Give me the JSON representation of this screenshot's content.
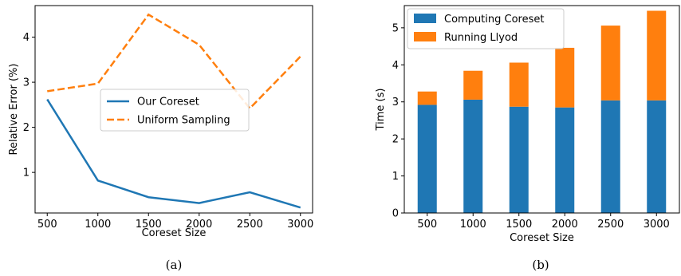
{
  "chart_data": [
    {
      "id": "a",
      "type": "line",
      "caption": "(a)",
      "title": "",
      "xlabel": "Coreset Size",
      "ylabel": "Relative Error (%)",
      "x": [
        500,
        1000,
        1500,
        2000,
        2500,
        3000
      ],
      "xlim": [
        380,
        3120
      ],
      "ylim": [
        0.1,
        4.7
      ],
      "xticks": [
        500,
        1000,
        1500,
        2000,
        2500,
        3000
      ],
      "yticks": [
        1,
        2,
        3,
        4
      ],
      "grid": false,
      "legend": "center-right",
      "series": [
        {
          "name": "Our Coreset",
          "color": "#1f77b4",
          "style": "solid",
          "values": [
            2.62,
            0.82,
            0.45,
            0.32,
            0.56,
            0.22
          ]
        },
        {
          "name": "Uniform Sampling",
          "color": "#ff7f0e",
          "style": "dashed",
          "values": [
            2.8,
            2.97,
            4.5,
            3.83,
            2.42,
            3.57
          ]
        }
      ]
    },
    {
      "id": "b",
      "type": "bar",
      "stacked": true,
      "caption": "(b)",
      "title": "",
      "xlabel": "Coreset Size",
      "ylabel": "Time (s)",
      "categories": [
        "500",
        "1000",
        "1500",
        "2000",
        "2500",
        "3000"
      ],
      "ylim": [
        0,
        5.6
      ],
      "yticks": [
        0,
        1,
        2,
        3,
        4,
        5
      ],
      "grid": false,
      "legend": "top-left",
      "series": [
        {
          "name": "Computing Coreset",
          "color": "#1f77b4",
          "values": [
            2.92,
            3.06,
            2.87,
            2.85,
            3.04,
            3.04
          ]
        },
        {
          "name": "Running Llyod",
          "color": "#ff7f0e",
          "values": [
            0.36,
            0.78,
            1.19,
            1.61,
            2.02,
            2.42
          ]
        }
      ]
    }
  ]
}
